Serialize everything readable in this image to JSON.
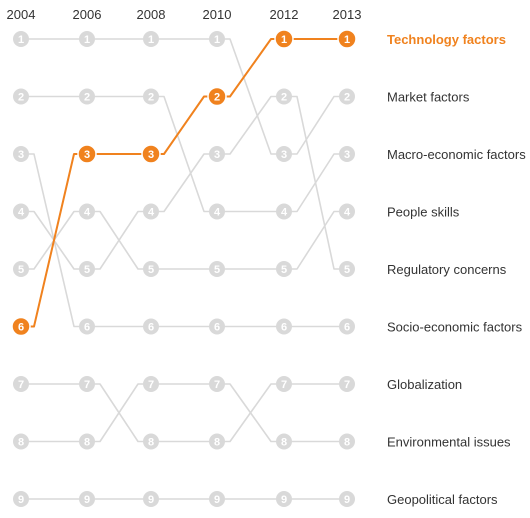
{
  "chart_data": {
    "type": "line",
    "chart_kind": "bump",
    "x": [
      "2004",
      "2006",
      "2008",
      "2010",
      "2012",
      "2013"
    ],
    "y_axis": "rank",
    "y_range": [
      1,
      9
    ],
    "y_inverted": true,
    "highlight_color": "#f0821e",
    "base_color": "#d9d9d9",
    "series": [
      {
        "name": "Technology factors",
        "ranks": [
          6,
          3,
          3,
          2,
          1,
          1
        ],
        "highlight": true
      },
      {
        "name": "Market factors",
        "ranks": [
          1,
          1,
          1,
          1,
          3,
          2
        ],
        "highlight": false
      },
      {
        "name": "Macro-economic factors",
        "ranks": [
          2,
          2,
          2,
          4,
          4,
          3
        ],
        "highlight": false
      },
      {
        "name": "People skills",
        "ranks": [
          5,
          4,
          5,
          5,
          5,
          4
        ],
        "highlight": false
      },
      {
        "name": "Regulatory concerns",
        "ranks": [
          4,
          5,
          4,
          3,
          2,
          5
        ],
        "highlight": false
      },
      {
        "name": "Socio-economic factors",
        "ranks": [
          3,
          6,
          6,
          6,
          6,
          6
        ],
        "highlight": false
      },
      {
        "name": "Globalization",
        "ranks": [
          7,
          7,
          8,
          8,
          7,
          7
        ],
        "highlight": false
      },
      {
        "name": "Environmental issues",
        "ranks": [
          8,
          8,
          7,
          7,
          8,
          8
        ],
        "highlight": false
      },
      {
        "name": "Geopolitical factors",
        "ranks": [
          9,
          9,
          9,
          9,
          9,
          9
        ],
        "highlight": false
      }
    ],
    "row_labels": [
      "Technology factors",
      "Market factors",
      "Macro-economic factors",
      "People skills",
      "Regulatory concerns",
      "Socio-economic factors",
      "Globalization",
      "Environmental issues",
      "Geopolitical factors"
    ],
    "title": "",
    "xlabel": "",
    "ylabel": "",
    "grid": false,
    "legend": "right"
  }
}
